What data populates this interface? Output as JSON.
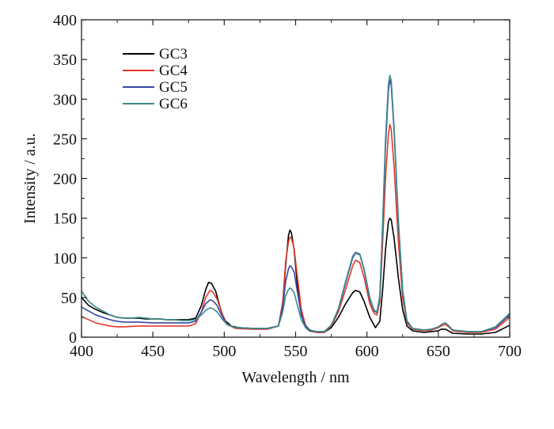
{
  "chart_data": {
    "type": "line",
    "xlabel": "Wavelength / nm",
    "ylabel": "Intensity / a.u.",
    "xlim": [
      400,
      700
    ],
    "ylim": [
      0,
      400
    ],
    "xticks": [
      400,
      450,
      500,
      550,
      600,
      650,
      700
    ],
    "yticks": [
      0,
      50,
      100,
      150,
      200,
      250,
      300,
      350,
      400
    ],
    "grid": false,
    "legend_position": "top-left",
    "series": [
      {
        "name": "GC3",
        "color": "#000000",
        "points": [
          [
            400,
            50
          ],
          [
            405,
            40
          ],
          [
            410,
            35
          ],
          [
            415,
            31
          ],
          [
            420,
            28
          ],
          [
            425,
            25
          ],
          [
            430,
            24
          ],
          [
            435,
            24
          ],
          [
            440,
            24
          ],
          [
            445,
            23
          ],
          [
            450,
            23
          ],
          [
            455,
            23
          ],
          [
            460,
            22
          ],
          [
            465,
            22
          ],
          [
            470,
            22
          ],
          [
            475,
            22
          ],
          [
            480,
            24
          ],
          [
            484,
            40
          ],
          [
            487,
            60
          ],
          [
            489,
            69
          ],
          [
            491,
            68
          ],
          [
            494,
            58
          ],
          [
            497,
            38
          ],
          [
            500,
            22
          ],
          [
            505,
            14
          ],
          [
            510,
            12
          ],
          [
            520,
            11
          ],
          [
            530,
            11
          ],
          [
            538,
            14
          ],
          [
            541,
            40
          ],
          [
            543,
            90
          ],
          [
            545,
            128
          ],
          [
            546,
            135
          ],
          [
            547,
            132
          ],
          [
            549,
            110
          ],
          [
            551,
            70
          ],
          [
            554,
            30
          ],
          [
            557,
            12
          ],
          [
            560,
            8
          ],
          [
            565,
            6
          ],
          [
            570,
            6
          ],
          [
            575,
            12
          ],
          [
            580,
            25
          ],
          [
            585,
            42
          ],
          [
            590,
            56
          ],
          [
            592,
            59
          ],
          [
            595,
            57
          ],
          [
            598,
            45
          ],
          [
            602,
            25
          ],
          [
            606,
            12
          ],
          [
            609,
            20
          ],
          [
            611,
            60
          ],
          [
            613,
            110
          ],
          [
            615,
            145
          ],
          [
            616,
            150
          ],
          [
            617,
            148
          ],
          [
            619,
            125
          ],
          [
            622,
            75
          ],
          [
            625,
            35
          ],
          [
            628,
            14
          ],
          [
            632,
            8
          ],
          [
            640,
            6
          ],
          [
            645,
            7
          ],
          [
            650,
            8
          ],
          [
            652,
            10
          ],
          [
            655,
            10
          ],
          [
            658,
            7
          ],
          [
            660,
            5
          ],
          [
            670,
            4
          ],
          [
            680,
            4
          ],
          [
            690,
            6
          ],
          [
            700,
            15
          ]
        ]
      },
      {
        "name": "GC4",
        "color": "#e8382a",
        "points": [
          [
            400,
            26
          ],
          [
            405,
            22
          ],
          [
            410,
            18
          ],
          [
            415,
            16
          ],
          [
            420,
            14
          ],
          [
            425,
            13
          ],
          [
            430,
            13
          ],
          [
            440,
            14
          ],
          [
            450,
            14
          ],
          [
            460,
            14
          ],
          [
            470,
            14
          ],
          [
            475,
            14
          ],
          [
            480,
            17
          ],
          [
            484,
            32
          ],
          [
            487,
            50
          ],
          [
            490,
            59
          ],
          [
            492,
            57
          ],
          [
            495,
            48
          ],
          [
            498,
            32
          ],
          [
            502,
            16
          ],
          [
            508,
            11
          ],
          [
            520,
            10
          ],
          [
            530,
            10
          ],
          [
            538,
            14
          ],
          [
            541,
            45
          ],
          [
            543,
            95
          ],
          [
            545,
            120
          ],
          [
            546,
            126
          ],
          [
            547,
            125
          ],
          [
            549,
            112
          ],
          [
            551,
            80
          ],
          [
            554,
            35
          ],
          [
            557,
            15
          ],
          [
            560,
            9
          ],
          [
            565,
            6
          ],
          [
            570,
            6
          ],
          [
            575,
            14
          ],
          [
            580,
            32
          ],
          [
            585,
            60
          ],
          [
            590,
            90
          ],
          [
            592,
            97
          ],
          [
            595,
            94
          ],
          [
            598,
            75
          ],
          [
            602,
            42
          ],
          [
            605,
            30
          ],
          [
            607,
            28
          ],
          [
            609,
            45
          ],
          [
            611,
            120
          ],
          [
            613,
            200
          ],
          [
            615,
            255
          ],
          [
            616,
            268
          ],
          [
            617,
            262
          ],
          [
            619,
            215
          ],
          [
            622,
            120
          ],
          [
            625,
            50
          ],
          [
            628,
            18
          ],
          [
            632,
            10
          ],
          [
            640,
            8
          ],
          [
            645,
            9
          ],
          [
            650,
            12
          ],
          [
            653,
            15
          ],
          [
            655,
            16
          ],
          [
            658,
            12
          ],
          [
            660,
            8
          ],
          [
            670,
            6
          ],
          [
            680,
            6
          ],
          [
            690,
            10
          ],
          [
            700,
            25
          ]
        ]
      },
      {
        "name": "GC5",
        "color": "#3848a8",
        "points": [
          [
            400,
            38
          ],
          [
            405,
            33
          ],
          [
            410,
            28
          ],
          [
            415,
            25
          ],
          [
            420,
            22
          ],
          [
            425,
            20
          ],
          [
            430,
            19
          ],
          [
            440,
            19
          ],
          [
            450,
            18
          ],
          [
            460,
            18
          ],
          [
            470,
            18
          ],
          [
            475,
            18
          ],
          [
            480,
            20
          ],
          [
            484,
            32
          ],
          [
            487,
            42
          ],
          [
            490,
            47
          ],
          [
            492,
            46
          ],
          [
            495,
            40
          ],
          [
            498,
            28
          ],
          [
            502,
            16
          ],
          [
            508,
            12
          ],
          [
            520,
            11
          ],
          [
            530,
            11
          ],
          [
            538,
            14
          ],
          [
            541,
            38
          ],
          [
            543,
            70
          ],
          [
            545,
            86
          ],
          [
            546,
            90
          ],
          [
            547,
            89
          ],
          [
            549,
            82
          ],
          [
            551,
            60
          ],
          [
            554,
            28
          ],
          [
            557,
            14
          ],
          [
            560,
            9
          ],
          [
            565,
            7
          ],
          [
            570,
            7
          ],
          [
            575,
            15
          ],
          [
            580,
            35
          ],
          [
            585,
            68
          ],
          [
            590,
            100
          ],
          [
            592,
            106
          ],
          [
            595,
            104
          ],
          [
            598,
            85
          ],
          [
            602,
            48
          ],
          [
            605,
            33
          ],
          [
            607,
            31
          ],
          [
            609,
            50
          ],
          [
            611,
            140
          ],
          [
            613,
            240
          ],
          [
            615,
            310
          ],
          [
            616,
            324
          ],
          [
            617,
            318
          ],
          [
            619,
            260
          ],
          [
            622,
            145
          ],
          [
            625,
            58
          ],
          [
            628,
            20
          ],
          [
            632,
            11
          ],
          [
            640,
            9
          ],
          [
            645,
            10
          ],
          [
            650,
            13
          ],
          [
            653,
            17
          ],
          [
            655,
            18
          ],
          [
            658,
            13
          ],
          [
            660,
            9
          ],
          [
            670,
            7
          ],
          [
            680,
            7
          ],
          [
            690,
            12
          ],
          [
            700,
            28
          ]
        ]
      },
      {
        "name": "GC6",
        "color": "#3a8a8a",
        "points": [
          [
            400,
            58
          ],
          [
            405,
            45
          ],
          [
            410,
            38
          ],
          [
            415,
            33
          ],
          [
            420,
            28
          ],
          [
            425,
            25
          ],
          [
            430,
            24
          ],
          [
            435,
            24
          ],
          [
            440,
            25
          ],
          [
            445,
            24
          ],
          [
            450,
            23
          ],
          [
            455,
            23
          ],
          [
            460,
            22
          ],
          [
            465,
            22
          ],
          [
            470,
            21
          ],
          [
            475,
            21
          ],
          [
            480,
            22
          ],
          [
            484,
            28
          ],
          [
            487,
            34
          ],
          [
            490,
            37
          ],
          [
            492,
            36
          ],
          [
            495,
            32
          ],
          [
            498,
            24
          ],
          [
            502,
            16
          ],
          [
            508,
            12
          ],
          [
            520,
            11
          ],
          [
            530,
            11
          ],
          [
            538,
            14
          ],
          [
            541,
            32
          ],
          [
            543,
            52
          ],
          [
            545,
            60
          ],
          [
            546,
            62
          ],
          [
            547,
            61
          ],
          [
            549,
            56
          ],
          [
            551,
            42
          ],
          [
            554,
            22
          ],
          [
            557,
            12
          ],
          [
            560,
            9
          ],
          [
            565,
            7
          ],
          [
            570,
            7
          ],
          [
            575,
            15
          ],
          [
            580,
            36
          ],
          [
            585,
            70
          ],
          [
            590,
            102
          ],
          [
            592,
            107
          ],
          [
            595,
            105
          ],
          [
            598,
            86
          ],
          [
            602,
            50
          ],
          [
            605,
            34
          ],
          [
            607,
            32
          ],
          [
            609,
            52
          ],
          [
            611,
            145
          ],
          [
            613,
            250
          ],
          [
            615,
            318
          ],
          [
            616,
            330
          ],
          [
            617,
            324
          ],
          [
            619,
            265
          ],
          [
            622,
            148
          ],
          [
            625,
            60
          ],
          [
            628,
            21
          ],
          [
            632,
            11
          ],
          [
            640,
            9
          ],
          [
            645,
            10
          ],
          [
            650,
            13
          ],
          [
            653,
            17
          ],
          [
            655,
            18
          ],
          [
            658,
            13
          ],
          [
            660,
            9
          ],
          [
            670,
            7
          ],
          [
            680,
            7
          ],
          [
            690,
            13
          ],
          [
            700,
            30
          ]
        ]
      }
    ]
  }
}
